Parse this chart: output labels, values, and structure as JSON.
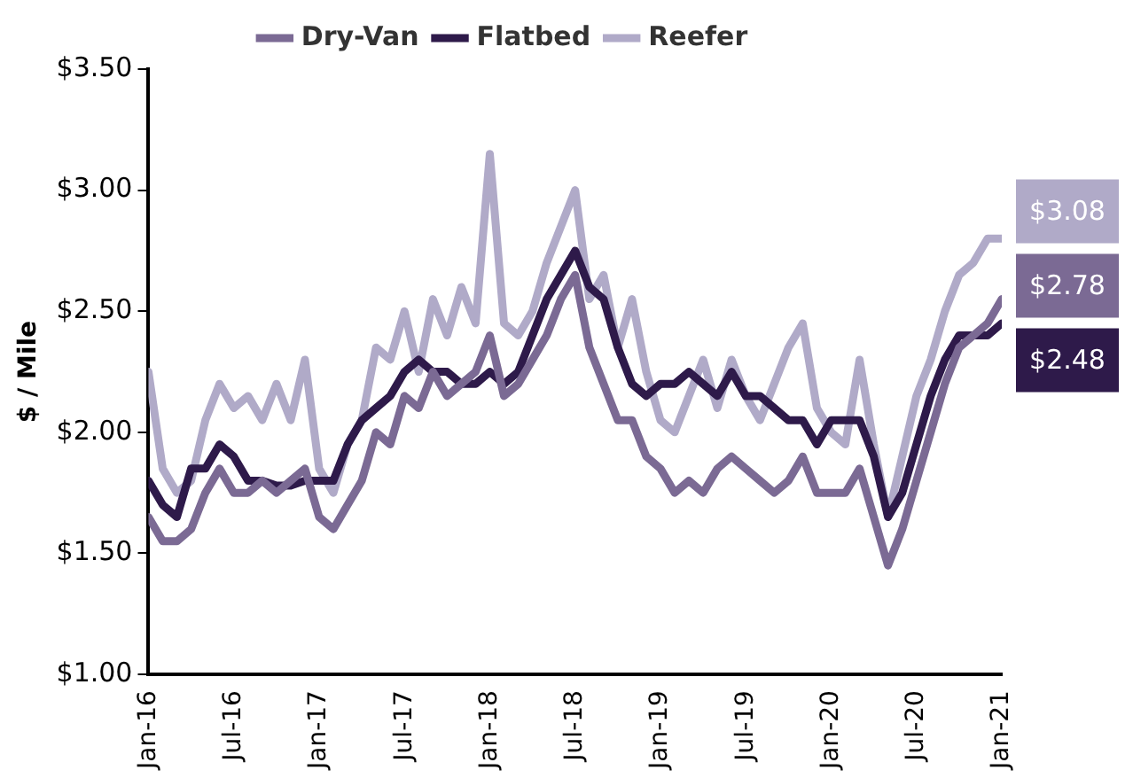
{
  "chart_data": {
    "type": "line",
    "ylabel": "$ / Mile",
    "x": [
      "2016-01",
      "2016-02",
      "2016-03",
      "2016-04",
      "2016-05",
      "2016-06",
      "2016-07",
      "2016-08",
      "2016-09",
      "2016-10",
      "2016-11",
      "2016-12",
      "2017-01",
      "2017-02",
      "2017-03",
      "2017-04",
      "2017-05",
      "2017-06",
      "2017-07",
      "2017-08",
      "2017-09",
      "2017-10",
      "2017-11",
      "2017-12",
      "2018-01",
      "2018-02",
      "2018-03",
      "2018-04",
      "2018-05",
      "2018-06",
      "2018-07",
      "2018-08",
      "2018-09",
      "2018-10",
      "2018-11",
      "2018-12",
      "2019-01",
      "2019-02",
      "2019-03",
      "2019-04",
      "2019-05",
      "2019-06",
      "2019-07",
      "2019-08",
      "2019-09",
      "2019-10",
      "2019-11",
      "2019-12",
      "2020-01",
      "2020-02",
      "2020-03",
      "2020-04",
      "2020-05",
      "2020-06",
      "2020-07",
      "2020-08",
      "2020-09",
      "2020-10",
      "2020-11",
      "2020-12",
      "2021-01"
    ],
    "series": [
      {
        "name": "Dry-Van",
        "color": "#7b6a94",
        "values": [
          1.65,
          1.55,
          1.55,
          1.6,
          1.75,
          1.85,
          1.75,
          1.75,
          1.8,
          1.75,
          1.8,
          1.85,
          1.65,
          1.6,
          1.7,
          1.8,
          2.0,
          1.95,
          2.15,
          2.1,
          2.25,
          2.15,
          2.2,
          2.25,
          2.4,
          2.15,
          2.2,
          2.3,
          2.4,
          2.55,
          2.65,
          2.35,
          2.2,
          2.05,
          2.05,
          1.9,
          1.85,
          1.75,
          1.8,
          1.75,
          1.85,
          1.9,
          1.85,
          1.8,
          1.75,
          1.8,
          1.9,
          1.75,
          1.75,
          1.75,
          1.85,
          1.65,
          1.45,
          1.6,
          1.8,
          2.0,
          2.2,
          2.35,
          2.4,
          2.45,
          2.55
        ]
      },
      {
        "name": "Flatbed",
        "color": "#2e1a4a",
        "values": [
          1.8,
          1.7,
          1.65,
          1.85,
          1.85,
          1.95,
          1.9,
          1.8,
          1.8,
          1.78,
          1.78,
          1.8,
          1.8,
          1.8,
          1.95,
          2.05,
          2.1,
          2.15,
          2.25,
          2.3,
          2.25,
          2.25,
          2.2,
          2.2,
          2.25,
          2.2,
          2.25,
          2.4,
          2.55,
          2.65,
          2.75,
          2.6,
          2.55,
          2.35,
          2.2,
          2.15,
          2.2,
          2.2,
          2.25,
          2.2,
          2.15,
          2.25,
          2.15,
          2.15,
          2.1,
          2.05,
          2.05,
          1.95,
          2.05,
          2.05,
          2.05,
          1.9,
          1.65,
          1.75,
          1.95,
          2.15,
          2.3,
          2.4,
          2.4,
          2.4,
          2.45
        ]
      },
      {
        "name": "Reefer",
        "color": "#b0aac8",
        "values": [
          2.25,
          1.85,
          1.75,
          1.8,
          2.05,
          2.2,
          2.1,
          2.15,
          2.05,
          2.2,
          2.05,
          2.3,
          1.85,
          1.75,
          1.95,
          2.05,
          2.35,
          2.3,
          2.5,
          2.25,
          2.55,
          2.4,
          2.6,
          2.45,
          3.15,
          2.45,
          2.4,
          2.5,
          2.7,
          2.85,
          3.0,
          2.55,
          2.65,
          2.35,
          2.55,
          2.25,
          2.05,
          2.0,
          2.15,
          2.3,
          2.1,
          2.3,
          2.15,
          2.05,
          2.2,
          2.35,
          2.45,
          2.1,
          2.0,
          1.95,
          2.3,
          1.95,
          1.65,
          1.9,
          2.15,
          2.3,
          2.5,
          2.65,
          2.7,
          2.8,
          2.8
        ]
      }
    ],
    "xlim": [
      "2016-01",
      "2021-01"
    ],
    "xticks": [
      {
        "value": "2016-01",
        "label": "Jan-16"
      },
      {
        "value": "2016-07",
        "label": "Jul-16"
      },
      {
        "value": "2017-01",
        "label": "Jan-17"
      },
      {
        "value": "2017-07",
        "label": "Jul-17"
      },
      {
        "value": "2018-01",
        "label": "Jan-18"
      },
      {
        "value": "2018-07",
        "label": "Jul-18"
      },
      {
        "value": "2019-01",
        "label": "Jan-19"
      },
      {
        "value": "2019-07",
        "label": "Jul-19"
      },
      {
        "value": "2020-01",
        "label": "Jan-20"
      },
      {
        "value": "2020-07",
        "label": "Jul-20"
      },
      {
        "value": "2021-01",
        "label": "Jan-21"
      }
    ],
    "ylim": [
      1,
      3.5
    ],
    "yticks": [
      {
        "value": 1,
        "label": "$1.00"
      },
      {
        "value": 1.5,
        "label": "$1.50"
      },
      {
        "value": 2,
        "label": "$2.00"
      },
      {
        "value": 2.5,
        "label": "$2.50"
      },
      {
        "value": 3,
        "label": "$3.00"
      },
      {
        "value": 3.5,
        "label": "$3.50"
      }
    ],
    "annotations": [
      "$3.08",
      "$2.78",
      "$2.48"
    ],
    "legend": "top",
    "grid": false,
    "marker": "none",
    "line_style": "solid"
  }
}
